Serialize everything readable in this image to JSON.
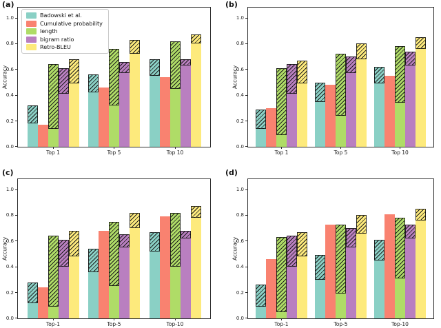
{
  "figure": {
    "background": "#ffffff",
    "axis_color": "#2e2e2e",
    "hatch_color": "#1b1b1b",
    "hatch_pattern": "diagonal-forward-slash"
  },
  "legend": {
    "location": "upper left",
    "shown_in_panel": "(a)"
  },
  "series_meta": [
    {
      "name": "Badowski et al.",
      "color": "#8ad0c5"
    },
    {
      "name": "Cumulative probability",
      "color": "#f98270"
    },
    {
      "name": "length",
      "color": "#afdc67"
    },
    {
      "name": "bigram ratio",
      "color": "#b97fc0"
    },
    {
      "name": "Retro-BLEU",
      "color": "#fdea7c"
    }
  ],
  "chart_data": [
    {
      "type": "bar",
      "panel_label": "(a)",
      "ylabel": "Accuracy",
      "ylim": [
        0,
        1.08
      ],
      "yticks": [
        "0.0",
        "0.2",
        "0.4",
        "0.6",
        "0.8",
        "1.0"
      ],
      "categories": [
        "Top 1",
        "Top 5",
        "Top 10"
      ],
      "legend_visible": true,
      "series": [
        {
          "name": "Badowski et al.",
          "total": [
            0.32,
            0.56,
            0.68
          ],
          "solid": [
            0.18,
            0.42,
            0.55
          ]
        },
        {
          "name": "Cumulative probability",
          "total": [
            0.17,
            0.46,
            0.54
          ],
          "solid": [
            0.17,
            0.46,
            0.54
          ]
        },
        {
          "name": "length",
          "total": [
            0.64,
            0.76,
            0.82
          ],
          "solid": [
            0.14,
            0.32,
            0.45
          ]
        },
        {
          "name": "bigram ratio",
          "total": [
            0.61,
            0.66,
            0.68
          ],
          "solid": [
            0.41,
            0.57,
            0.63
          ]
        },
        {
          "name": "Retro-BLEU",
          "total": [
            0.68,
            0.83,
            0.87
          ],
          "solid": [
            0.49,
            0.72,
            0.8
          ]
        }
      ]
    },
    {
      "type": "bar",
      "panel_label": "(b)",
      "ylabel": "Accuracy",
      "ylim": [
        0,
        1.08
      ],
      "yticks": [
        "0.0",
        "0.2",
        "0.4",
        "0.6",
        "0.8",
        "1.0"
      ],
      "categories": [
        "Top 1",
        "Top 5",
        "Top 10"
      ],
      "legend_visible": false,
      "series": [
        {
          "name": "Badowski et al.",
          "total": [
            0.29,
            0.5,
            0.62
          ],
          "solid": [
            0.14,
            0.35,
            0.49
          ]
        },
        {
          "name": "Cumulative probability",
          "total": [
            0.3,
            0.48,
            0.55
          ],
          "solid": [
            0.3,
            0.48,
            0.55
          ]
        },
        {
          "name": "length",
          "total": [
            0.61,
            0.72,
            0.78
          ],
          "solid": [
            0.09,
            0.24,
            0.34
          ]
        },
        {
          "name": "bigram ratio",
          "total": [
            0.64,
            0.7,
            0.74
          ],
          "solid": [
            0.41,
            0.57,
            0.63
          ]
        },
        {
          "name": "Retro-BLEU",
          "total": [
            0.67,
            0.8,
            0.85
          ],
          "solid": [
            0.49,
            0.68,
            0.76
          ]
        }
      ]
    },
    {
      "type": "bar",
      "panel_label": "(c)",
      "ylabel": "Accuracy",
      "ylim": [
        0,
        1.08
      ],
      "yticks": [
        "0.0",
        "0.2",
        "0.4",
        "0.6",
        "0.8",
        "1.0"
      ],
      "categories": [
        "Top-1",
        "Top-5",
        "Top-10"
      ],
      "legend_visible": false,
      "series": [
        {
          "name": "Badowski et al.",
          "total": [
            0.28,
            0.54,
            0.67
          ],
          "solid": [
            0.12,
            0.36,
            0.52
          ]
        },
        {
          "name": "Cumulative probability",
          "total": [
            0.24,
            0.68,
            0.79
          ],
          "solid": [
            0.24,
            0.68,
            0.79
          ]
        },
        {
          "name": "length",
          "total": [
            0.64,
            0.75,
            0.82
          ],
          "solid": [
            0.09,
            0.25,
            0.4
          ]
        },
        {
          "name": "bigram ratio",
          "total": [
            0.61,
            0.65,
            0.68
          ],
          "solid": [
            0.4,
            0.55,
            0.62
          ]
        },
        {
          "name": "Retro-BLEU",
          "total": [
            0.68,
            0.82,
            0.87
          ],
          "solid": [
            0.48,
            0.7,
            0.78
          ]
        }
      ]
    },
    {
      "type": "bar",
      "panel_label": "(d)",
      "ylabel": "Accuracy",
      "ylim": [
        0,
        1.08
      ],
      "yticks": [
        "0.0",
        "0.2",
        "0.4",
        "0.6",
        "0.8",
        "1.0"
      ],
      "categories": [
        "Top-1",
        "Top-5",
        "Top-10"
      ],
      "legend_visible": false,
      "series": [
        {
          "name": "Badowski et al.",
          "total": [
            0.26,
            0.49,
            0.61
          ],
          "solid": [
            0.09,
            0.3,
            0.45
          ]
        },
        {
          "name": "Cumulative probability",
          "total": [
            0.46,
            0.73,
            0.81
          ],
          "solid": [
            0.46,
            0.73,
            0.81
          ]
        },
        {
          "name": "length",
          "total": [
            0.63,
            0.73,
            0.78
          ],
          "solid": [
            0.05,
            0.19,
            0.31
          ]
        },
        {
          "name": "bigram ratio",
          "total": [
            0.64,
            0.7,
            0.73
          ],
          "solid": [
            0.4,
            0.55,
            0.62
          ]
        },
        {
          "name": "Retro-BLEU",
          "total": [
            0.67,
            0.8,
            0.85
          ],
          "solid": [
            0.48,
            0.66,
            0.76
          ]
        }
      ]
    }
  ]
}
